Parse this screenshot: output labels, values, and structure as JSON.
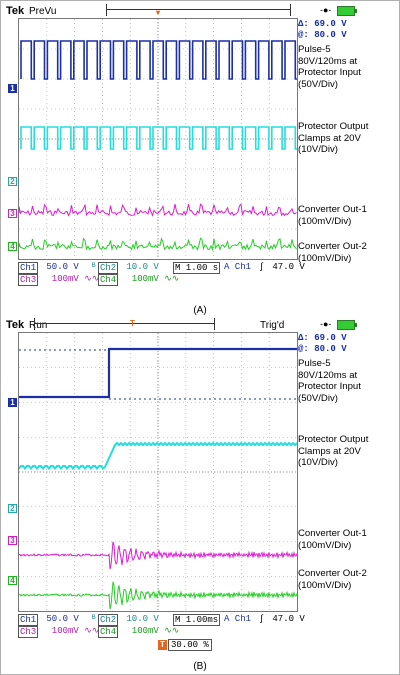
{
  "panels": [
    {
      "brand": "Tek",
      "mode": "PreVu",
      "trig_status": "",
      "meas": {
        "delta": "Δ:  69.0 V",
        "at": "@:  80.0 V"
      },
      "side_labels": [
        "Pulse-5\n80V/120ms at\nProtector Input\n(50V/Div)",
        "Protector Output\nClamps at 20V\n(10V/Div)",
        "Converter Out-1\n(100mV/Div)",
        "Converter Out-2\n(100mV/Div)"
      ],
      "channel_markers": [
        "1",
        "2",
        "3",
        "4"
      ],
      "status": {
        "ch1": "Ch1",
        "ch1_scale": " 50.0 V ",
        "ch2": "Ch2",
        "ch2_scale": " 10.0 V ",
        "timebase": "M 1.00 s",
        "a_ch": "A Ch1",
        "trig_symbol": "∫",
        "trig_level": " 47.0 V",
        "ch3": "Ch3",
        "ch3_scale": "  100mV ∿∿",
        "ch4": "Ch4",
        "ch4_scale": "  100mV ∿∿"
      },
      "trigger_readout": "",
      "caption": "(A)"
    },
    {
      "brand": "Tek",
      "mode": "Run",
      "trig_status": "Trig'd",
      "meas": {
        "delta": "Δ:  69.0 V",
        "at": "@:  80.0 V"
      },
      "side_labels": [
        "Pulse-5\n80V/120ms at\nProtector Input\n(50V/Div)",
        "Protector Output\nClamps at 20V\n(10V/Div)",
        "Converter Out-1\n(100mV/Div)",
        "Converter Out-2\n(100mV/Div)"
      ],
      "channel_markers": [
        "1",
        "2",
        "3",
        "4"
      ],
      "status": {
        "ch1": "Ch1",
        "ch1_scale": " 50.0 V ",
        "ch2": "Ch2",
        "ch2_scale": " 10.0 V ",
        "timebase": "M 1.00ms",
        "a_ch": "A Ch1",
        "trig_symbol": "∫",
        "trig_level": " 47.0 V",
        "ch3": "Ch3",
        "ch3_scale": "  100mV ∿∿",
        "ch4": "Ch4",
        "ch4_scale": "  100mV ∿∿"
      },
      "trigger_readout": "30.00 %",
      "caption": "(B)"
    }
  ],
  "colors": {
    "ch1": "#1a2fa8",
    "ch2": "#22dede",
    "ch3": "#e21ad6",
    "ch4": "#22d022",
    "grid": "#9a9a9a",
    "trigger_marker": "#e8641b"
  }
}
